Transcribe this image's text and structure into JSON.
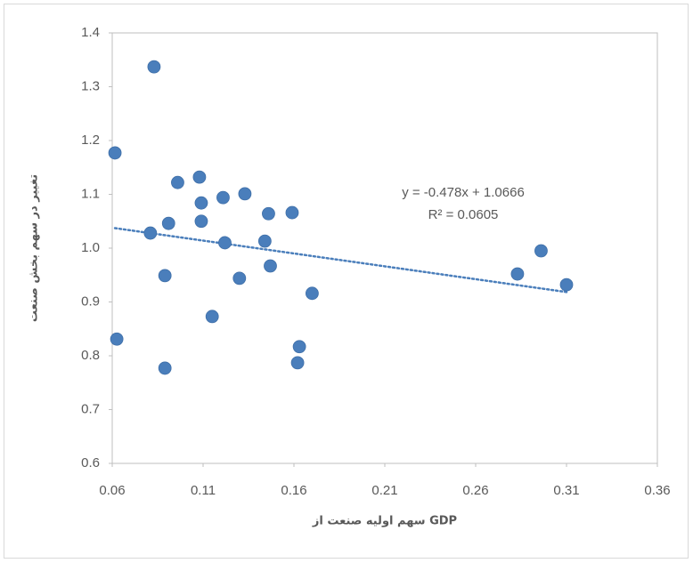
{
  "chart_data": {
    "type": "scatter",
    "xlabel": "سهم اولیه صنعت از GDP",
    "ylabel": "تغییر در سهم بخش صنعت",
    "x": [
      0.083,
      0.0615,
      0.096,
      0.108,
      0.109,
      0.121,
      0.133,
      0.146,
      0.159,
      0.091,
      0.109,
      0.081,
      0.122,
      0.144,
      0.147,
      0.089,
      0.13,
      0.17,
      0.115,
      0.0625,
      0.163,
      0.162,
      0.089,
      0.296,
      0.283,
      0.31
    ],
    "values": [
      1.337,
      1.177,
      1.122,
      1.132,
      1.084,
      1.094,
      1.101,
      1.064,
      1.066,
      1.046,
      1.05,
      1.028,
      1.01,
      1.013,
      0.967,
      0.949,
      0.944,
      0.916,
      0.873,
      0.831,
      0.817,
      0.787,
      0.777,
      0.995,
      0.952,
      0.932
    ],
    "color": "#4a7ebb",
    "xlim": [
      0.06,
      0.36
    ],
    "xticks": [
      0.06,
      0.11,
      0.16,
      0.21,
      0.26,
      0.31,
      0.36
    ],
    "ylim": [
      0.6,
      1.4
    ],
    "yticks": [
      0.6,
      0.7,
      0.8,
      0.9,
      {
        "value": 1,
        "label": "1.0"
      },
      1.1,
      1.2,
      1.3,
      1.4
    ],
    "grid": false,
    "trendline": {
      "slope": -0.478,
      "intercept": 1.0666,
      "equation": "y = -0.478x + 1.0666",
      "r_squared": "R² = 0.0605"
    }
  }
}
